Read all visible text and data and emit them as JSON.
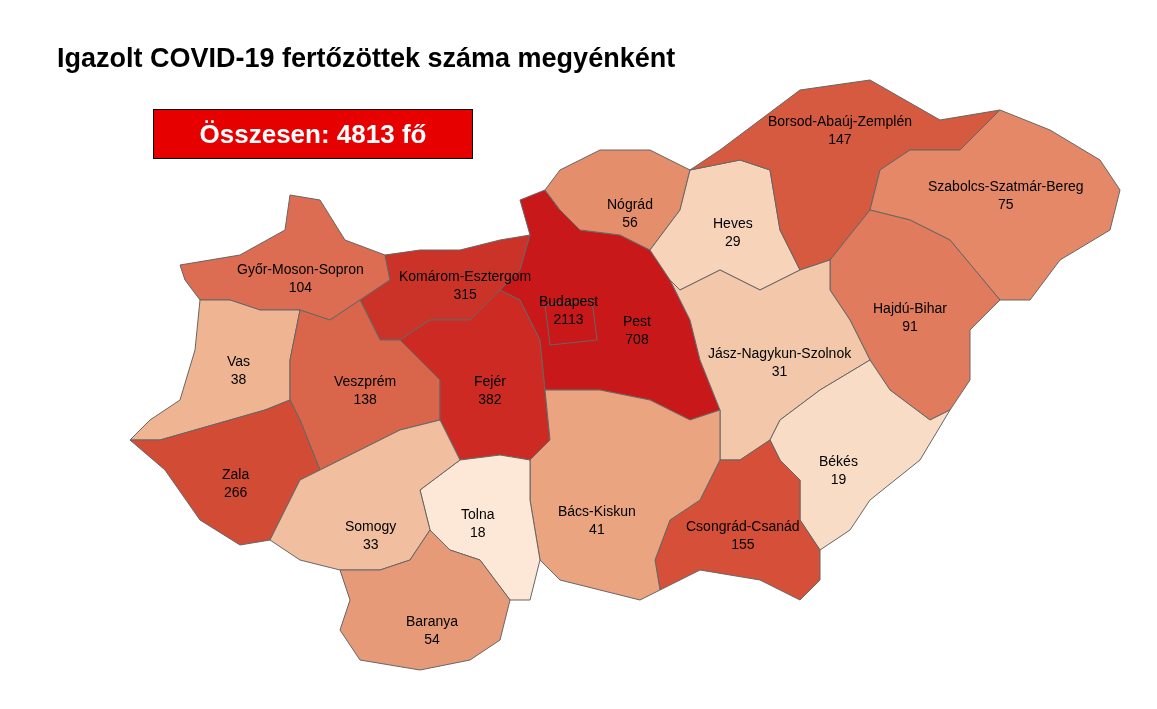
{
  "chart_data": {
    "type": "other",
    "title": "Igazolt COVID-19 fertőzöttek száma megyénként",
    "annotations": [
      "Összesen: 4813 fő"
    ],
    "categories": [
      "Győr-Moson-Sopron",
      "Komárom-Esztergom",
      "Vas",
      "Veszprém",
      "Zala",
      "Fejér",
      "Pest",
      "Budapest",
      "Nógrád",
      "Heves",
      "Borsod-Abaúj-Zemplén",
      "Szabolcs-Szatmár-Bereg",
      "Hajdú-Bihar",
      "Jász-Nagykun-Szolnok",
      "Békés",
      "Csongrád-Csanád",
      "Bács-Kiskun",
      "Tolna",
      "Somogy",
      "Baranya"
    ],
    "values": [
      104,
      315,
      38,
      138,
      266,
      382,
      708,
      2113,
      56,
      29,
      147,
      75,
      91,
      31,
      19,
      155,
      41,
      18,
      33,
      54
    ],
    "colors": [
      "#dc6d52",
      "#cc3328",
      "#efb592",
      "#d9654b",
      "#d24b34",
      "#cc2a22",
      "#c8181a",
      "#c8181a",
      "#e48e6c",
      "#f6d3b9",
      "#d55a3f",
      "#e58868",
      "#e07b5d",
      "#f3c8aa",
      "#f8dcc5",
      "#d64f38",
      "#eaa47f",
      "#fde8d8",
      "#f1bf9f",
      "#e79a77"
    ],
    "data_labels": true
  }
}
